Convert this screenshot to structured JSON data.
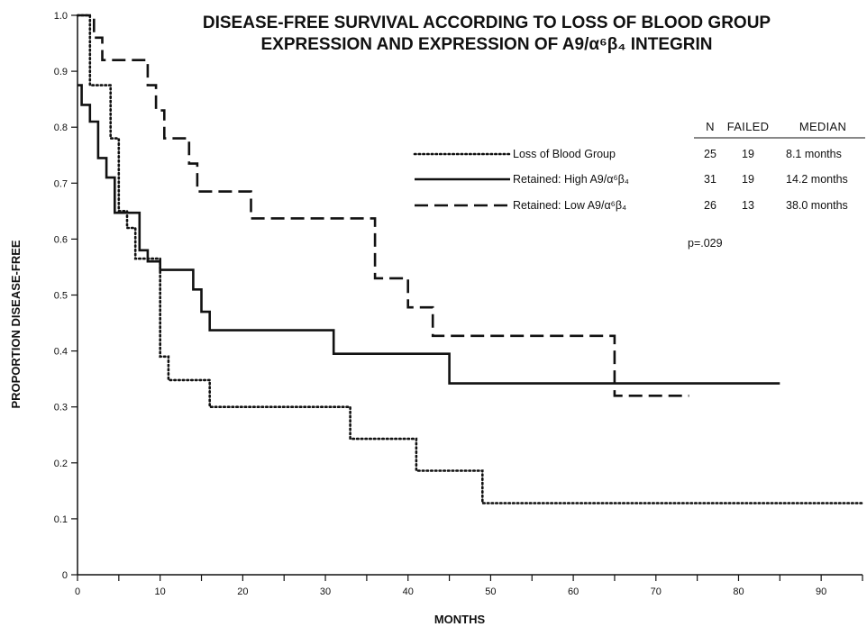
{
  "chart_data": {
    "type": "line",
    "subtype": "kaplan-meier step curves",
    "title_line1": "DISEASE-FREE SURVIVAL ACCORDING TO LOSS OF BLOOD GROUP",
    "title_line2": "EXPRESSION AND EXPRESSION OF A9/α⁶β₄ INTEGRIN",
    "xlabel": "MONTHS",
    "ylabel": "PROPORTION DISEASE-FREE",
    "xlim": [
      0,
      95
    ],
    "ylim": [
      0,
      1.0
    ],
    "xticks": [
      0,
      10,
      20,
      30,
      40,
      50,
      60,
      70,
      80,
      90
    ],
    "yticks": [
      0,
      0.1,
      0.2,
      0.3,
      0.4,
      0.5,
      0.6,
      0.7,
      0.8,
      0.9,
      1.0
    ],
    "ytick_labels": [
      "0",
      "0.1",
      "0.2",
      "0.3",
      "0.4",
      "0.5",
      "0.6",
      "0.7",
      "0.8",
      "0.9",
      "1.0"
    ],
    "grid": false,
    "legend_position": "top-right",
    "series": [
      {
        "name": "Loss of Blood Group",
        "style": "dotted",
        "color": "#111111",
        "x": [
          0,
          1,
          1.5,
          3,
          4,
          5,
          6,
          7,
          9,
          10,
          11,
          16,
          33,
          41,
          49,
          95
        ],
        "y": [
          1.0,
          1.0,
          0.875,
          0.875,
          0.78,
          0.65,
          0.62,
          0.565,
          0.565,
          0.39,
          0.348,
          0.3,
          0.243,
          0.186,
          0.128,
          0.128
        ]
      },
      {
        "name": "Retained: High A9/α⁶β₄",
        "style": "solid",
        "color": "#111111",
        "x": [
          0,
          0.5,
          1.5,
          2.5,
          3.5,
          4.5,
          7.5,
          8.5,
          10,
          14,
          15,
          16,
          31,
          45,
          85
        ],
        "y": [
          0.875,
          0.84,
          0.81,
          0.745,
          0.71,
          0.647,
          0.58,
          0.56,
          0.545,
          0.51,
          0.47,
          0.437,
          0.395,
          0.342,
          0.342
        ]
      },
      {
        "name": "Retained: Low A9/α⁶β₄",
        "style": "dashed",
        "color": "#111111",
        "x": [
          0,
          1,
          2,
          3,
          8.5,
          9.5,
          10.5,
          13.5,
          14.5,
          21,
          36,
          40,
          43,
          65,
          74
        ],
        "y": [
          1.0,
          1.0,
          0.96,
          0.92,
          0.875,
          0.83,
          0.78,
          0.735,
          0.685,
          0.637,
          0.53,
          0.478,
          0.427,
          0.32,
          0.32
        ]
      }
    ],
    "table": {
      "headers": [
        "N",
        "FAILED",
        "MEDIAN"
      ],
      "rows": [
        [
          "25",
          "19",
          "8.1 months"
        ],
        [
          "31",
          "19",
          "14.2 months"
        ],
        [
          "26",
          "13",
          "38.0 months"
        ]
      ]
    },
    "annotation": "p=.029"
  }
}
